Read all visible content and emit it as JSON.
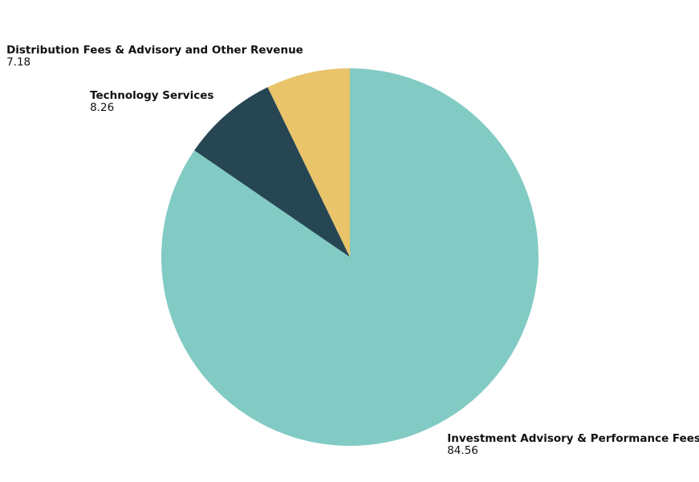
{
  "chart_data": {
    "type": "pie",
    "categories": [
      "Investment Advisory & Performance Fees",
      "Technology Services",
      "Distribution Fees & Advisory and Other Revenue"
    ],
    "values": [
      84.56,
      8.26,
      7.18
    ],
    "colors": [
      "#82cbc4",
      "#264653",
      "#e9c46a"
    ]
  }
}
